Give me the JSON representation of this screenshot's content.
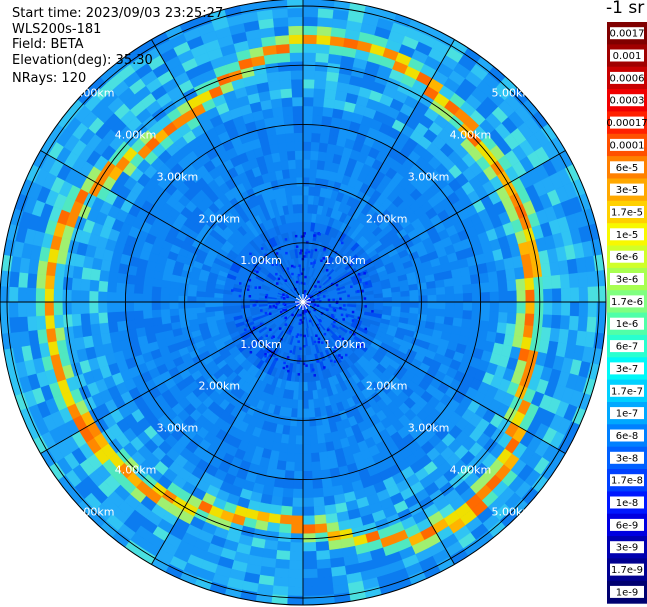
{
  "info": {
    "start_time": "Start time: 2023/09/03 23:25:27",
    "instrument": "WLS200s-181",
    "field": "Field: BETA",
    "elevation": "Elevation(deg): 35.30",
    "nrays": "NRays: 120"
  },
  "colorbar": {
    "unit": "-1 sr",
    "labels": [
      "0.0017",
      "0.001",
      "0.0006",
      "0.0003",
      "0.00017",
      "0.0001",
      "6e-5",
      "3e-5",
      "1.7e-5",
      "1e-5",
      "6e-6",
      "3e-6",
      "1.7e-6",
      "1e-6",
      "6e-7",
      "3e-7",
      "1.7e-7",
      "1e-7",
      "6e-8",
      "3e-8",
      "1.7e-8",
      "1e-8",
      "6e-9",
      "3e-9",
      "1.7e-9",
      "1e-9"
    ],
    "colors": [
      "#800000",
      "#a00000",
      "#c80000",
      "#f00000",
      "#ff2000",
      "#ff5000",
      "#ff8000",
      "#ffa800",
      "#ffd000",
      "#f8f800",
      "#d0ff28",
      "#a8ff50",
      "#80ff80",
      "#50ffa8",
      "#28ffd0",
      "#00f8f8",
      "#00d0ff",
      "#00a8ff",
      "#0080ff",
      "#0060ff",
      "#0040ff",
      "#0018ff",
      "#0000e0",
      "#0000b0",
      "#000090",
      "#000070"
    ]
  },
  "chart_data": {
    "type": "heatmap",
    "projection": "polar (PPI scan)",
    "variable": "BETA (backscatter)",
    "unit": "sr^-1",
    "colorbar_scale": "log",
    "colorbar_range": [
      1e-09,
      0.0017
    ],
    "n_rays": 120,
    "azimuth_spokes_deg": [
      0,
      30,
      60,
      90,
      120,
      150,
      180,
      210,
      240,
      270,
      300,
      330
    ],
    "range_rings": [
      {
        "label": "1.00km",
        "value_km": 1.0
      },
      {
        "label": "2.00km",
        "value_km": 2.0
      },
      {
        "label": "3.00km",
        "value_km": 3.0
      },
      {
        "label": "4.00km",
        "value_km": 4.0
      },
      {
        "label": "5.00km",
        "value_km": 5.0
      }
    ],
    "max_range_km": 5.15,
    "dominant_background_value": 1e-07,
    "near_range_value": 6e-08,
    "echo_ring": {
      "range_km": 4.1,
      "peak_value": 3e-05,
      "description": "bright ring of enhanced backscatter"
    },
    "grid": true
  }
}
